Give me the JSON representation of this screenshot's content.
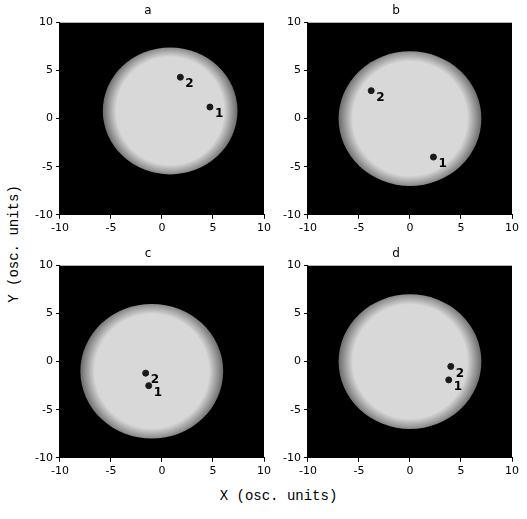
{
  "xlabel": "X (osc. units)",
  "ylabel": "Y (osc. units)",
  "chart_data": [
    {
      "type": "scatter",
      "title": "a",
      "xlim": [
        -10,
        10
      ],
      "ylim": [
        -10,
        10
      ],
      "xticks": [
        -10,
        -5,
        0,
        5,
        10
      ],
      "yticks": [
        -10,
        -5,
        0,
        5,
        10
      ],
      "grid": false,
      "cloud": {
        "center": [
          0.8,
          0.8
        ],
        "radius": 6.6,
        "color": "#d8d8d8"
      },
      "points": {
        "x": [
          4.7,
          1.8
        ],
        "y": [
          1.2,
          4.3
        ],
        "labels": [
          "1",
          "2"
        ],
        "color": "#1a1a1a"
      }
    },
    {
      "type": "scatter",
      "title": "b",
      "xlim": [
        -10,
        10
      ],
      "ylim": [
        -10,
        10
      ],
      "xticks": [
        -10,
        -5,
        0,
        5,
        10
      ],
      "yticks": [
        -10,
        -5,
        0,
        5,
        10
      ],
      "grid": false,
      "cloud": {
        "center": [
          0,
          0
        ],
        "radius": 7.0,
        "color": "#d8d8d8"
      },
      "points": {
        "x": [
          2.3,
          -3.8
        ],
        "y": [
          -4.0,
          2.9
        ],
        "labels": [
          "1",
          "2"
        ],
        "color": "#1a1a1a"
      }
    },
    {
      "type": "scatter",
      "title": "c",
      "xlim": [
        -10,
        10
      ],
      "ylim": [
        -10,
        10
      ],
      "xticks": [
        -10,
        -5,
        0,
        5,
        10
      ],
      "yticks": [
        -10,
        -5,
        0,
        5,
        10
      ],
      "grid": false,
      "cloud": {
        "center": [
          -1.0,
          -1.0
        ],
        "radius": 7.0,
        "color": "#d8d8d8"
      },
      "points": {
        "x": [
          -1.3,
          -1.6
        ],
        "y": [
          -2.5,
          -1.2
        ],
        "labels": [
          "1",
          "2"
        ],
        "color": "#1a1a1a"
      }
    },
    {
      "type": "scatter",
      "title": "d",
      "xlim": [
        -10,
        10
      ],
      "ylim": [
        -10,
        10
      ],
      "xticks": [
        -10,
        -5,
        0,
        5,
        10
      ],
      "yticks": [
        -10,
        -5,
        0,
        5,
        10
      ],
      "grid": false,
      "cloud": {
        "center": [
          0,
          0
        ],
        "radius": 7.0,
        "color": "#d8d8d8"
      },
      "points": {
        "x": [
          3.8,
          4.0
        ],
        "y": [
          -1.9,
          -0.5
        ],
        "labels": [
          "1",
          "2"
        ],
        "color": "#1a1a1a"
      }
    }
  ]
}
